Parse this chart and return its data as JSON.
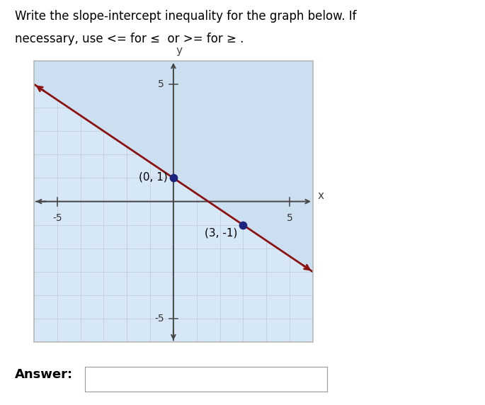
{
  "title_line1": "Write the slope-intercept inequality for the graph below. If",
  "title_line2": "necessary, use <= for ≤  or >= for ≥ .",
  "title_fontsize": 12,
  "graph_bg_color": "#d6e8f7",
  "graph_border_color": "#b8b8b8",
  "xlim": [
    -7.5,
    7.5
  ],
  "ylim": [
    -7.5,
    7.5
  ],
  "graph_xmin": -6,
  "graph_xmax": 6,
  "graph_ymin": -6,
  "graph_ymax": 6,
  "xticks": [
    -5,
    5
  ],
  "yticks": [
    5,
    -5
  ],
  "tick_labels_fontsize": 10,
  "line_slope_num": -2,
  "line_slope_den": 3,
  "line_intercept": 1,
  "line_color": "#8b1111",
  "line_width": 2.0,
  "shade_color": "#ccdff0",
  "shade_alpha": 1.0,
  "points": [
    [
      0,
      1
    ],
    [
      3,
      -1
    ]
  ],
  "point_color": "#1a237e",
  "point_size": 55,
  "point_labels": [
    "(0, 1)",
    "(3, -1)"
  ],
  "axis_color": "#444444",
  "grid_color": "#c0c8d0",
  "grid_lw": 0.5,
  "answer_label": "Answer:",
  "answer_label_fontsize": 13,
  "answer_label_fontweight": "bold"
}
